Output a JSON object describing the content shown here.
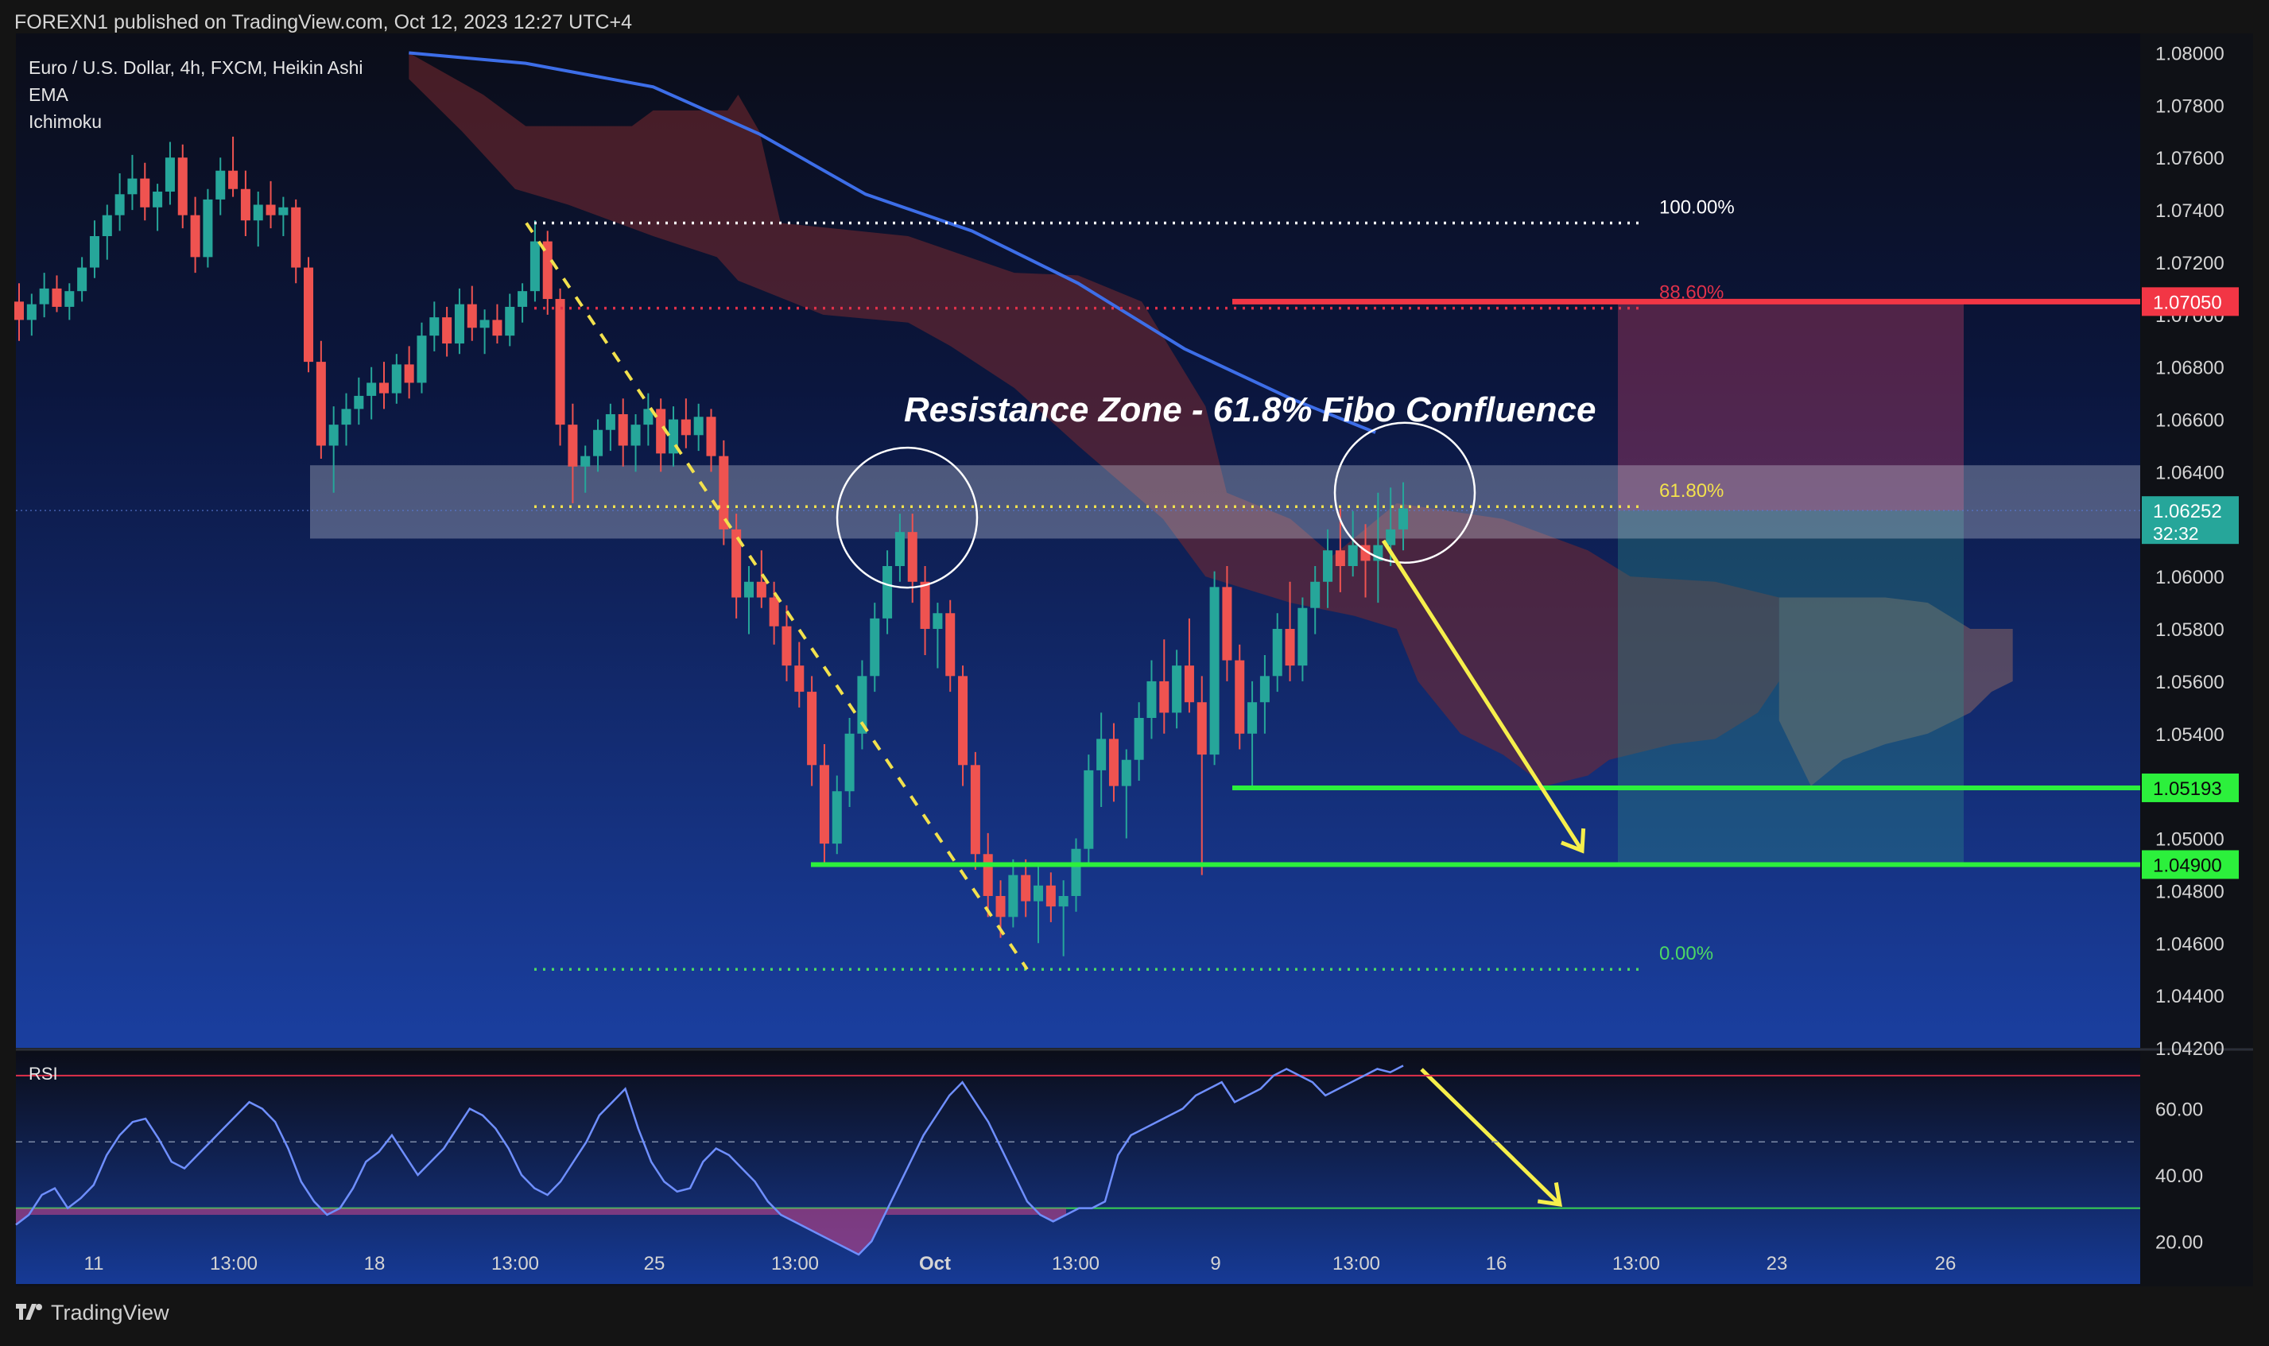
{
  "header": {
    "published": "FOREXN1 published on TradingView.com, Oct 12, 2023 12:27 UTC+4"
  },
  "legend": [
    "Euro / U.S. Dollar, 4h, FXCM, Heikin Ashi",
    "EMA",
    "Ichimoku"
  ],
  "footer": {
    "brand": "TradingView",
    "logo_icon": "tradingview-logo-icon"
  },
  "colors": {
    "bull": "#26a69a",
    "bear": "#ef5350",
    "ema": "#3d6ee8",
    "fib_white": "#ffffff",
    "fib_red": "#e0314a",
    "fib_yellow": "#f2e14d",
    "fib_green": "#4cd964",
    "resistance_line": "#f23645",
    "support_line": "#2cf03c",
    "arrow": "#f6ef4b",
    "cloud": "#7a2a30",
    "rsi_line": "#6f8fff"
  },
  "chart_data": [
    {
      "type": "candlestick",
      "title": "Euro / U.S. Dollar, 4h, FXCM, Heikin Ashi",
      "indicators": [
        "EMA",
        "Ichimoku"
      ],
      "ylim": [
        1.042,
        1.0805
      ],
      "y_ticks": [
        "1.08000",
        "1.07800",
        "1.07600",
        "1.07400",
        "1.07200",
        "1.07000",
        "1.06800",
        "1.06600",
        "1.06400",
        "1.06200",
        "1.06000",
        "1.05800",
        "1.05600",
        "1.05400",
        "1.05200",
        "1.05000",
        "1.04800",
        "1.04600",
        "1.04400",
        "1.04200"
      ],
      "x_ticks": [
        "11",
        "13:00",
        "18",
        "13:00",
        "25",
        "13:00",
        "Oct",
        "13:00",
        "9",
        "13:00",
        "16",
        "13:00",
        "23",
        "26"
      ],
      "price_labels": [
        {
          "text": "1.07050",
          "value": 1.0705,
          "color": "#f23645"
        },
        {
          "text": "1.06252",
          "value": 1.06252,
          "color": "#26a69a",
          "sub": "32:32"
        },
        {
          "text": "1.05193",
          "value": 1.05193,
          "color": "#2cf03c"
        },
        {
          "text": "1.04900",
          "value": 1.049,
          "color": "#2cf03c"
        }
      ],
      "fibonacci": [
        {
          "label": "100.00%",
          "value": 1.0735
        },
        {
          "label": "88.60%",
          "value": 1.07025
        },
        {
          "label": "61.80%",
          "value": 1.06267
        },
        {
          "label": "0.00%",
          "value": 1.045
        }
      ],
      "annotations": {
        "title": "Resistance Zone - 61.8% Fibo Confluence",
        "resistance_zone": [
          1.06145,
          1.06425
        ],
        "resistance_line": 1.0705,
        "support_lines": [
          1.05193,
          1.049
        ],
        "circle_1": 1.06225,
        "circle_2": 1.0632
      },
      "ohlc_approx": [
        [
          1.0705,
          1.0712,
          1.069,
          1.0698
        ],
        [
          1.0698,
          1.0708,
          1.0692,
          1.0704
        ],
        [
          1.0704,
          1.0716,
          1.0699,
          1.071
        ],
        [
          1.071,
          1.0715,
          1.0701,
          1.0703
        ],
        [
          1.0703,
          1.0712,
          1.0698,
          1.0709
        ],
        [
          1.0709,
          1.0722,
          1.0705,
          1.0718
        ],
        [
          1.0718,
          1.0736,
          1.0714,
          1.073
        ],
        [
          1.073,
          1.0742,
          1.0721,
          1.0738
        ],
        [
          1.0738,
          1.0754,
          1.0732,
          1.0746
        ],
        [
          1.0746,
          1.0761,
          1.074,
          1.0752
        ],
        [
          1.0752,
          1.0758,
          1.0736,
          1.0741
        ],
        [
          1.0741,
          1.075,
          1.0732,
          1.0747
        ],
        [
          1.0747,
          1.0766,
          1.0742,
          1.076
        ],
        [
          1.076,
          1.0765,
          1.0733,
          1.0738
        ],
        [
          1.0738,
          1.0745,
          1.0716,
          1.0722
        ],
        [
          1.0722,
          1.0748,
          1.0718,
          1.0744
        ],
        [
          1.0744,
          1.076,
          1.0738,
          1.0755
        ],
        [
          1.0755,
          1.0768,
          1.0745,
          1.0748
        ],
        [
          1.0748,
          1.0755,
          1.073,
          1.0736
        ],
        [
          1.0736,
          1.0747,
          1.0726,
          1.0742
        ],
        [
          1.0742,
          1.0751,
          1.0733,
          1.0738
        ],
        [
          1.0738,
          1.0745,
          1.073,
          1.0741
        ],
        [
          1.0741,
          1.0744,
          1.0712,
          1.0718
        ],
        [
          1.0718,
          1.0722,
          1.0678,
          1.0682
        ],
        [
          1.0682,
          1.069,
          1.0645,
          1.065
        ],
        [
          1.065,
          1.0665,
          1.0632,
          1.0658
        ],
        [
          1.0658,
          1.067,
          1.065,
          1.0664
        ],
        [
          1.0664,
          1.0676,
          1.0658,
          1.0669
        ],
        [
          1.0669,
          1.068,
          1.066,
          1.0674
        ],
        [
          1.0674,
          1.0682,
          1.0664,
          1.067
        ],
        [
          1.067,
          1.0685,
          1.0666,
          1.0681
        ],
        [
          1.0681,
          1.0688,
          1.0668,
          1.0674
        ],
        [
          1.0674,
          1.0697,
          1.067,
          1.0692
        ],
        [
          1.0692,
          1.0705,
          1.0686,
          1.0699
        ],
        [
          1.0699,
          1.0703,
          1.0684,
          1.0689
        ],
        [
          1.0689,
          1.071,
          1.0685,
          1.0704
        ],
        [
          1.0704,
          1.0711,
          1.069,
          1.0695
        ],
        [
          1.0695,
          1.0702,
          1.0685,
          1.0698
        ],
        [
          1.0698,
          1.0704,
          1.0689,
          1.0692
        ],
        [
          1.0692,
          1.0708,
          1.0688,
          1.0703
        ],
        [
          1.0703,
          1.0712,
          1.0697,
          1.0709
        ],
        [
          1.0709,
          1.0736,
          1.0705,
          1.0728
        ],
        [
          1.0728,
          1.0732,
          1.07,
          1.0706
        ],
        [
          1.0706,
          1.071,
          1.065,
          1.0658
        ],
        [
          1.0658,
          1.0666,
          1.0628,
          1.0642
        ],
        [
          1.0642,
          1.065,
          1.0632,
          1.0646
        ],
        [
          1.0646,
          1.066,
          1.064,
          1.0656
        ],
        [
          1.0656,
          1.0666,
          1.0648,
          1.0662
        ],
        [
          1.0662,
          1.0668,
          1.0642,
          1.065
        ],
        [
          1.065,
          1.0662,
          1.064,
          1.0658
        ],
        [
          1.0658,
          1.067,
          1.065,
          1.0664
        ],
        [
          1.0664,
          1.0668,
          1.064,
          1.0647
        ],
        [
          1.0647,
          1.0665,
          1.0642,
          1.066
        ],
        [
          1.066,
          1.0668,
          1.0649,
          1.0654
        ],
        [
          1.0654,
          1.0666,
          1.0648,
          1.0661
        ],
        [
          1.0661,
          1.0664,
          1.064,
          1.0646
        ],
        [
          1.0646,
          1.0652,
          1.0612,
          1.0618
        ],
        [
          1.0618,
          1.0624,
          1.0584,
          1.0592
        ],
        [
          1.0592,
          1.0604,
          1.0578,
          1.0598
        ],
        [
          1.0598,
          1.061,
          1.0588,
          1.0592
        ],
        [
          1.0592,
          1.0598,
          1.0574,
          1.0581
        ],
        [
          1.0581,
          1.0589,
          1.056,
          1.0566
        ],
        [
          1.0566,
          1.0575,
          1.055,
          1.0556
        ],
        [
          1.0556,
          1.0562,
          1.052,
          1.0528
        ],
        [
          1.0528,
          1.0536,
          1.049,
          1.0498
        ],
        [
          1.0498,
          1.0524,
          1.0494,
          1.0518
        ],
        [
          1.0518,
          1.0546,
          1.0512,
          1.054
        ],
        [
          1.054,
          1.0568,
          1.0534,
          1.0562
        ],
        [
          1.0562,
          1.059,
          1.0556,
          1.0584
        ],
        [
          1.0584,
          1.061,
          1.0578,
          1.0604
        ],
        [
          1.0604,
          1.0624,
          1.0598,
          1.0617
        ],
        [
          1.0617,
          1.0624,
          1.059,
          1.0598
        ],
        [
          1.0598,
          1.0604,
          1.057,
          1.058
        ],
        [
          1.058,
          1.059,
          1.0565,
          1.0586
        ],
        [
          1.0586,
          1.0591,
          1.0556,
          1.0562
        ],
        [
          1.0562,
          1.0566,
          1.052,
          1.0528
        ],
        [
          1.0528,
          1.0533,
          1.0488,
          1.0494
        ],
        [
          1.0494,
          1.0502,
          1.047,
          1.0478
        ],
        [
          1.0478,
          1.0484,
          1.0462,
          1.047
        ],
        [
          1.047,
          1.0492,
          1.0466,
          1.0486
        ],
        [
          1.0486,
          1.0492,
          1.047,
          1.0476
        ],
        [
          1.0476,
          1.049,
          1.046,
          1.0482
        ],
        [
          1.0482,
          1.0487,
          1.0468,
          1.0474
        ],
        [
          1.0474,
          1.0484,
          1.0455,
          1.0478
        ],
        [
          1.0478,
          1.05,
          1.0472,
          1.0496
        ],
        [
          1.0496,
          1.0532,
          1.049,
          1.0526
        ],
        [
          1.0526,
          1.0548,
          1.0512,
          1.0538
        ],
        [
          1.0538,
          1.0544,
          1.0514,
          1.052
        ],
        [
          1.052,
          1.0534,
          1.05,
          1.053
        ],
        [
          1.053,
          1.0552,
          1.0522,
          1.0546
        ],
        [
          1.0546,
          1.0568,
          1.0538,
          1.056
        ],
        [
          1.056,
          1.0576,
          1.054,
          1.0548
        ],
        [
          1.0548,
          1.0572,
          1.0542,
          1.0566
        ],
        [
          1.0566,
          1.0584,
          1.0548,
          1.0552
        ],
        [
          1.0552,
          1.0562,
          1.0486,
          1.0532
        ],
        [
          1.0532,
          1.0602,
          1.0528,
          1.0596
        ],
        [
          1.0596,
          1.0604,
          1.056,
          1.0568
        ],
        [
          1.0568,
          1.0574,
          1.0534,
          1.054
        ],
        [
          1.054,
          1.056,
          1.052,
          1.0552
        ],
        [
          1.0552,
          1.057,
          1.054,
          1.0562
        ],
        [
          1.0562,
          1.0586,
          1.0556,
          1.058
        ],
        [
          1.058,
          1.0598,
          1.056,
          1.0566
        ],
        [
          1.0566,
          1.0592,
          1.056,
          1.0588
        ],
        [
          1.0588,
          1.0604,
          1.0578,
          1.0598
        ],
        [
          1.0598,
          1.0618,
          1.0588,
          1.061
        ],
        [
          1.061,
          1.0626,
          1.0594,
          1.0604
        ],
        [
          1.0604,
          1.0625,
          1.06,
          1.0612
        ],
        [
          1.0612,
          1.062,
          1.0592,
          1.0606
        ],
        [
          1.0606,
          1.0632,
          1.059,
          1.0612
        ],
        [
          1.0612,
          1.0634,
          1.0604,
          1.0618
        ],
        [
          1.0618,
          1.0636,
          1.061,
          1.0626
        ]
      ],
      "ema": [
        [
          0.185,
          1.08
        ],
        [
          0.24,
          1.0796
        ],
        [
          0.3,
          1.0787
        ],
        [
          0.35,
          1.0769
        ],
        [
          0.4,
          1.0746
        ],
        [
          0.45,
          1.0732
        ],
        [
          0.5,
          1.0712
        ],
        [
          0.55,
          1.0687
        ],
        [
          0.6,
          1.0668
        ],
        [
          0.64,
          1.0655
        ]
      ],
      "ichimoku_cloud_top": [
        [
          0.185,
          1.08
        ],
        [
          0.22,
          1.0784
        ],
        [
          0.24,
          1.0772
        ],
        [
          0.29,
          1.0772
        ],
        [
          0.3,
          1.0778
        ],
        [
          0.335,
          1.0778
        ],
        [
          0.34,
          1.0784
        ],
        [
          0.35,
          1.077
        ],
        [
          0.36,
          1.0735
        ],
        [
          0.42,
          1.073
        ],
        [
          0.47,
          1.0716
        ],
        [
          0.5,
          1.0715
        ],
        [
          0.53,
          1.0705
        ],
        [
          0.545,
          1.0685
        ],
        [
          0.56,
          1.0665
        ],
        [
          0.57,
          1.0632
        ],
        [
          0.6,
          1.0622
        ],
        [
          0.62,
          1.0608
        ],
        [
          0.65,
          1.0628
        ],
        [
          0.7,
          1.0622
        ],
        [
          0.74,
          1.061
        ],
        [
          0.76,
          1.06
        ],
        [
          0.8,
          1.0598
        ],
        [
          0.83,
          1.0592
        ],
        [
          0.83,
          1.056
        ]
      ],
      "ichimoku_cloud_bottom": [
        [
          0.185,
          1.079
        ],
        [
          0.21,
          1.077
        ],
        [
          0.235,
          1.0748
        ],
        [
          0.26,
          1.0742
        ],
        [
          0.3,
          1.073
        ],
        [
          0.33,
          1.0722
        ],
        [
          0.34,
          1.0713
        ],
        [
          0.38,
          1.07
        ],
        [
          0.42,
          1.0697
        ],
        [
          0.44,
          1.0688
        ],
        [
          0.47,
          1.0672
        ],
        [
          0.5,
          1.065
        ],
        [
          0.54,
          1.0622
        ],
        [
          0.56,
          1.06
        ],
        [
          0.6,
          1.059
        ],
        [
          0.63,
          1.0585
        ],
        [
          0.65,
          1.058
        ],
        [
          0.66,
          1.056
        ],
        [
          0.68,
          1.054
        ],
        [
          0.7,
          1.0532
        ],
        [
          0.72,
          1.052
        ],
        [
          0.74,
          1.0524
        ],
        [
          0.75,
          1.053
        ],
        [
          0.78,
          1.0536
        ],
        [
          0.8,
          1.0538
        ],
        [
          0.82,
          1.0548
        ],
        [
          0.83,
          1.056
        ]
      ]
    },
    {
      "type": "line",
      "title": "RSI",
      "ylim": [
        10,
        75
      ],
      "y_ticks": [
        "60.00",
        "40.00",
        "20.00"
      ],
      "bands": [
        70,
        50,
        30
      ],
      "values": [
        25,
        28,
        34,
        36,
        30,
        33,
        37,
        46,
        52,
        56,
        57,
        51,
        44,
        42,
        46,
        50,
        54,
        58,
        62,
        60,
        56,
        48,
        38,
        32,
        28,
        30,
        36,
        44,
        47,
        52,
        46,
        40,
        44,
        48,
        54,
        60,
        58,
        54,
        48,
        40,
        36,
        34,
        38,
        44,
        50,
        58,
        62,
        66,
        54,
        44,
        38,
        35,
        36,
        44,
        48,
        46,
        42,
        38,
        32,
        28,
        26,
        24,
        22,
        20,
        18,
        16,
        20,
        28,
        36,
        44,
        52,
        58,
        64,
        68,
        62,
        56,
        48,
        40,
        32,
        28,
        26,
        28,
        30,
        30,
        32,
        46,
        52,
        54,
        56,
        58,
        60,
        64,
        66,
        68,
        62,
        64,
        66,
        70,
        72,
        70,
        68,
        64,
        66,
        68,
        70,
        72,
        71,
        73
      ]
    }
  ]
}
